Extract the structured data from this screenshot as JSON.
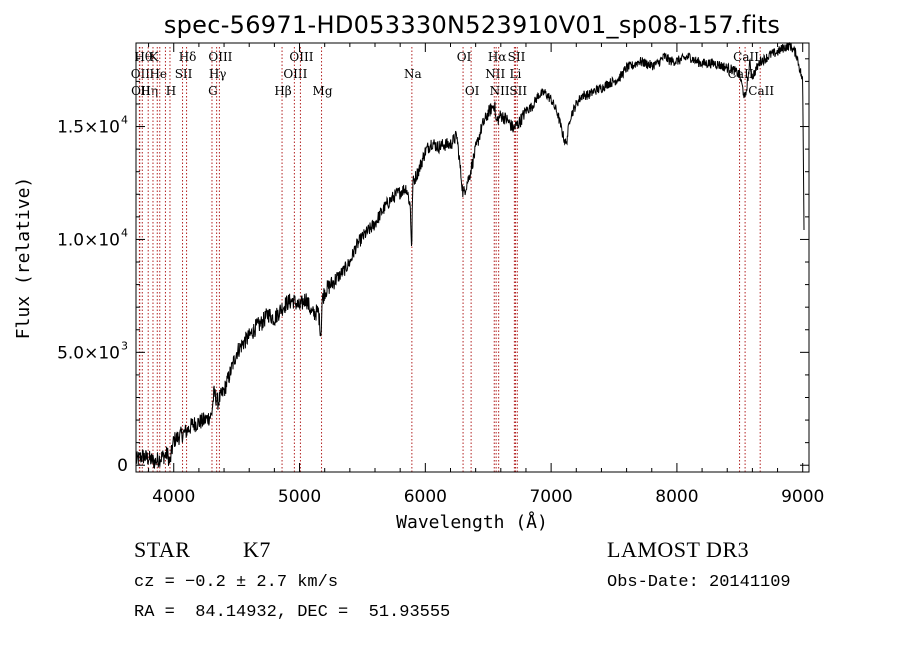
{
  "chart_data": {
    "type": "line",
    "title": "spec-56971-HD053330N523910V01_sp08-157.fits",
    "xlabel": "Wavelength (Å)",
    "ylabel": "Flux (relative)",
    "xlim": [
      3700,
      9050
    ],
    "ylim": [
      -300,
      18700
    ],
    "xticks": [
      {
        "value": 4000,
        "label": "4000"
      },
      {
        "value": 5000,
        "label": "5000"
      },
      {
        "value": 6000,
        "label": "6000"
      },
      {
        "value": 7000,
        "label": "7000"
      },
      {
        "value": 8000,
        "label": "8000"
      },
      {
        "value": 9000,
        "label": "9000"
      }
    ],
    "yticks": [
      {
        "value": 0,
        "label": "0",
        "exp": ""
      },
      {
        "value": 5000,
        "label": "5.0×10",
        "exp": "3"
      },
      {
        "value": 10000,
        "label": "1.0×10",
        "exp": "4"
      },
      {
        "value": 15000,
        "label": "1.5×10",
        "exp": "4"
      }
    ],
    "series": [
      {
        "name": "flux",
        "x": [
          3700,
          3750,
          3800,
          3850,
          3900,
          3950,
          3970,
          3990,
          4000,
          4050,
          4100,
          4150,
          4200,
          4250,
          4300,
          4320,
          4350,
          4400,
          4450,
          4500,
          4550,
          4600,
          4650,
          4700,
          4750,
          4800,
          4850,
          4900,
          4950,
          5000,
          5050,
          5100,
          5150,
          5170,
          5180,
          5200,
          5250,
          5300,
          5350,
          5400,
          5450,
          5500,
          5550,
          5600,
          5650,
          5700,
          5750,
          5800,
          5850,
          5880,
          5892,
          5900,
          5950,
          6000,
          6050,
          6100,
          6150,
          6200,
          6250,
          6300,
          6350,
          6400,
          6450,
          6500,
          6550,
          6563,
          6600,
          6650,
          6700,
          6750,
          6800,
          6850,
          6900,
          6950,
          7000,
          7050,
          7100,
          7120,
          7150,
          7200,
          7250,
          7300,
          7350,
          7400,
          7450,
          7500,
          7550,
          7600,
          7650,
          7700,
          7750,
          7800,
          7850,
          7900,
          7950,
          8000,
          8050,
          8100,
          8150,
          8200,
          8250,
          8300,
          8350,
          8400,
          8450,
          8498,
          8542,
          8580,
          8600,
          8662,
          8700,
          8750,
          8800,
          8850,
          8900,
          8950,
          9000,
          9010
        ],
        "values": [
          200,
          400,
          300,
          150,
          350,
          500,
          100,
          800,
          1100,
          1300,
          1500,
          1800,
          1900,
          2000,
          2200,
          3200,
          2800,
          3300,
          4100,
          5000,
          5400,
          5700,
          6100,
          6300,
          6700,
          6500,
          6900,
          7200,
          7300,
          7000,
          7400,
          6700,
          6800,
          5800,
          7300,
          7700,
          8000,
          8300,
          8600,
          9000,
          9700,
          10100,
          10400,
          10700,
          11200,
          11600,
          11900,
          12100,
          12300,
          11500,
          9500,
          12500,
          13100,
          13900,
          14300,
          14100,
          14200,
          14200,
          14600,
          12000,
          12800,
          14000,
          15000,
          15600,
          16000,
          15200,
          15500,
          15300,
          14900,
          15200,
          15700,
          15900,
          16400,
          16500,
          16200,
          15600,
          14500,
          14200,
          15400,
          16000,
          16400,
          16400,
          16600,
          16700,
          16900,
          17000,
          17200,
          17600,
          17700,
          17900,
          17800,
          17700,
          17800,
          18100,
          17900,
          17900,
          18000,
          18100,
          17900,
          17800,
          17800,
          17800,
          17700,
          17600,
          17500,
          17300,
          16200,
          17800,
          17200,
          17900,
          18000,
          18200,
          18300,
          18500,
          18600,
          18200,
          17000,
          10500
        ]
      }
    ],
    "lines": [
      {
        "value": 3727,
        "label": "OII",
        "row": 2
      },
      {
        "value": 3730,
        "label": "OII",
        "row": 3
      },
      {
        "value": 3750,
        "label": "Hθ",
        "row": 1
      },
      {
        "value": 3797,
        "label": "Hη",
        "row": 3
      },
      {
        "value": 3835,
        "label": "K",
        "row": 1
      },
      {
        "value": 3869,
        "label": "He",
        "row": 2
      },
      {
        "value": 3889,
        "label": "",
        "row": 0
      },
      {
        "value": 3934,
        "label": "",
        "row": 0
      },
      {
        "value": 3970,
        "label": "H",
        "row": 3
      },
      {
        "value": 4070,
        "label": "SII",
        "row": 2
      },
      {
        "value": 4102,
        "label": "Hδ",
        "row": 1
      },
      {
        "value": 4304,
        "label": "G",
        "row": 3
      },
      {
        "value": 4341,
        "label": "Hγ",
        "row": 2
      },
      {
        "value": 4363,
        "label": "OIII",
        "row": 1
      },
      {
        "value": 4861,
        "label": "Hβ",
        "row": 3
      },
      {
        "value": 4959,
        "label": "OIII",
        "row": 2
      },
      {
        "value": 5007,
        "label": "OIII",
        "row": 1
      },
      {
        "value": 5175,
        "label": "Mg",
        "row": 3
      },
      {
        "value": 5893,
        "label": "Na",
        "row": 2
      },
      {
        "value": 6300,
        "label": "OI",
        "row": 1
      },
      {
        "value": 6364,
        "label": "OI",
        "row": 3
      },
      {
        "value": 6548,
        "label": "NII",
        "row": 2
      },
      {
        "value": 6563,
        "label": "Hα",
        "row": 1
      },
      {
        "value": 6583,
        "label": "NII",
        "row": 3
      },
      {
        "value": 6708,
        "label": "Li",
        "row": 2
      },
      {
        "value": 6717,
        "label": "SII",
        "row": 1
      },
      {
        "value": 6731,
        "label": "SII",
        "row": 3
      },
      {
        "value": 8498,
        "label": "CaII",
        "row": 2
      },
      {
        "value": 8542,
        "label": "CaII",
        "row": 1
      },
      {
        "value": 8662,
        "label": "CaII",
        "row": 3
      }
    ],
    "grid": false,
    "legend": "none",
    "colors": {
      "spectrum": "#000000",
      "lines": "#b22222",
      "axes": "#000000"
    }
  },
  "info": {
    "type": "STAR",
    "subclass": "K7",
    "redshift": "cz = −0.2 ± 2.7 km/s",
    "coords": "RA =  84.14932, DEC =  51.93555",
    "survey": "LAMOST DR3",
    "obsdate": "Obs-Date: 20141109"
  }
}
